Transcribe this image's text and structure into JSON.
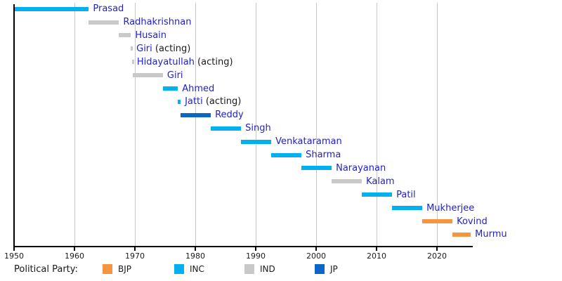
{
  "legend": {
    "title": "Political Party:",
    "items": [
      {
        "label": "BJP",
        "color": "#f6953f"
      },
      {
        "label": "INC",
        "color": "#00b0f0"
      },
      {
        "label": "IND",
        "color": "#c9c9c9"
      },
      {
        "label": "JP",
        "color": "#0d65c8"
      }
    ]
  },
  "colors": {
    "label_link": "#1f1fcc",
    "acting_text": "#1a1a1a",
    "axis": "#000000",
    "gridline": "#c8c8c8"
  },
  "chart_data": {
    "type": "bar",
    "variant": "horizontal-timeline-gantt",
    "xlabel": "",
    "ylabel": "",
    "x_axis": {
      "min": 1950,
      "max": 2025.8,
      "tick_years": [
        1950,
        1960,
        1970,
        1980,
        1990,
        2000,
        2010,
        2020
      ],
      "tick_labels": [
        "1950",
        "1960",
        "1970",
        "1980",
        "1990",
        "2000",
        "2010",
        "2020"
      ]
    },
    "grid": "vertical-decade-lines",
    "legend_position": "bottom",
    "party_colors": {
      "BJP": "#f6953f",
      "INC": "#00b0f0",
      "IND": "#c9c9c9",
      "JP": "#0d65c8"
    },
    "rows": [
      {
        "label": "Prasad",
        "acting": false,
        "party": "INC",
        "start": 1950.07,
        "end": 1962.37
      },
      {
        "label": "Radhakrishnan",
        "acting": false,
        "party": "IND",
        "start": 1962.37,
        "end": 1967.37
      },
      {
        "label": "Husain",
        "acting": false,
        "party": "IND",
        "start": 1967.37,
        "end": 1969.35
      },
      {
        "label": "Giri",
        "acting": true,
        "party": "IND",
        "start": 1969.35,
        "end": 1969.55
      },
      {
        "label": "Hidayatullah",
        "acting": true,
        "party": "IND",
        "start": 1969.55,
        "end": 1969.64
      },
      {
        "label": "Giri",
        "acting": false,
        "party": "IND",
        "start": 1969.64,
        "end": 1974.64
      },
      {
        "label": "Ahmed",
        "acting": false,
        "party": "INC",
        "start": 1974.64,
        "end": 1977.12
      },
      {
        "label": "Jatti",
        "acting": true,
        "party": "INC",
        "start": 1977.12,
        "end": 1977.57
      },
      {
        "label": "Reddy",
        "acting": false,
        "party": "JP",
        "start": 1977.57,
        "end": 1982.57
      },
      {
        "label": "Singh",
        "acting": false,
        "party": "INC",
        "start": 1982.57,
        "end": 1987.57
      },
      {
        "label": "Venkataraman",
        "acting": false,
        "party": "INC",
        "start": 1987.57,
        "end": 1992.57
      },
      {
        "label": "Sharma",
        "acting": false,
        "party": "INC",
        "start": 1992.57,
        "end": 1997.57
      },
      {
        "label": "Narayanan",
        "acting": false,
        "party": "INC",
        "start": 1997.57,
        "end": 2002.57
      },
      {
        "label": "Kalam",
        "acting": false,
        "party": "IND",
        "start": 2002.57,
        "end": 2007.57
      },
      {
        "label": "Patil",
        "acting": false,
        "party": "INC",
        "start": 2007.57,
        "end": 2012.57
      },
      {
        "label": "Mukherjee",
        "acting": false,
        "party": "INC",
        "start": 2012.57,
        "end": 2017.57
      },
      {
        "label": "Kovind",
        "acting": false,
        "party": "BJP",
        "start": 2017.57,
        "end": 2022.57
      },
      {
        "label": "Murmu",
        "acting": false,
        "party": "BJP",
        "start": 2022.57,
        "end": 2025.6
      }
    ],
    "acting_suffix": " (acting)"
  }
}
